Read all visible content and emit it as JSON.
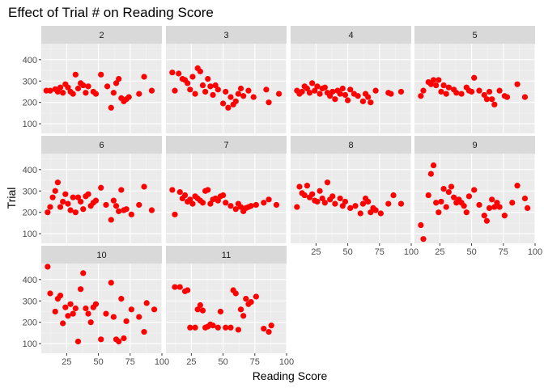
{
  "chart_data": {
    "type": "scatter",
    "title": "Effect of Trial # on Reading Score",
    "xlabel": "Reading Score",
    "ylabel": "Trial",
    "xlim": [
      5,
      100
    ],
    "ylim": [
      55,
      475
    ],
    "xticks": [
      25,
      50,
      75,
      100
    ],
    "yticks": [
      100,
      200,
      300,
      400
    ],
    "grid": true,
    "point_color": "#ff0000",
    "panel_bg": "#ebebeb",
    "strip_bg": "#d9d9d9",
    "facets": [
      {
        "label": "2",
        "points": [
          [
            9,
            255
          ],
          [
            12,
            255
          ],
          [
            16,
            262
          ],
          [
            18,
            250
          ],
          [
            20,
            270
          ],
          [
            22,
            245
          ],
          [
            24,
            285
          ],
          [
            26,
            270
          ],
          [
            28,
            250
          ],
          [
            30,
            240
          ],
          [
            32,
            330
          ],
          [
            34,
            265
          ],
          [
            36,
            290
          ],
          [
            38,
            280
          ],
          [
            40,
            245
          ],
          [
            42,
            275
          ],
          [
            46,
            250
          ],
          [
            48,
            240
          ],
          [
            52,
            330
          ],
          [
            57,
            275
          ],
          [
            60,
            175
          ],
          [
            62,
            245
          ],
          [
            64,
            290
          ],
          [
            66,
            310
          ],
          [
            68,
            220
          ],
          [
            70,
            205
          ],
          [
            72,
            215
          ],
          [
            74,
            225
          ],
          [
            82,
            240
          ],
          [
            86,
            320
          ],
          [
            92,
            255
          ]
        ]
      },
      {
        "label": "3",
        "points": [
          [
            10,
            340
          ],
          [
            12,
            255
          ],
          [
            15,
            335
          ],
          [
            18,
            310
          ],
          [
            20,
            305
          ],
          [
            22,
            290
          ],
          [
            24,
            260
          ],
          [
            26,
            320
          ],
          [
            28,
            240
          ],
          [
            30,
            360
          ],
          [
            32,
            345
          ],
          [
            34,
            280
          ],
          [
            36,
            250
          ],
          [
            38,
            310
          ],
          [
            40,
            275
          ],
          [
            42,
            235
          ],
          [
            44,
            280
          ],
          [
            46,
            260
          ],
          [
            50,
            195
          ],
          [
            52,
            250
          ],
          [
            54,
            175
          ],
          [
            56,
            225
          ],
          [
            58,
            190
          ],
          [
            60,
            205
          ],
          [
            62,
            240
          ],
          [
            64,
            265
          ],
          [
            66,
            230
          ],
          [
            70,
            255
          ],
          [
            74,
            225
          ],
          [
            84,
            260
          ],
          [
            86,
            200
          ],
          [
            94,
            240
          ]
        ]
      },
      {
        "label": "4",
        "points": [
          [
            10,
            255
          ],
          [
            12,
            240
          ],
          [
            14,
            250
          ],
          [
            16,
            275
          ],
          [
            18,
            265
          ],
          [
            20,
            245
          ],
          [
            22,
            290
          ],
          [
            24,
            255
          ],
          [
            26,
            275
          ],
          [
            28,
            240
          ],
          [
            30,
            265
          ],
          [
            32,
            270
          ],
          [
            34,
            245
          ],
          [
            36,
            230
          ],
          [
            38,
            250
          ],
          [
            40,
            215
          ],
          [
            42,
            255
          ],
          [
            44,
            240
          ],
          [
            46,
            265
          ],
          [
            48,
            235
          ],
          [
            50,
            210
          ],
          [
            52,
            260
          ],
          [
            55,
            240
          ],
          [
            58,
            230
          ],
          [
            62,
            205
          ],
          [
            64,
            240
          ],
          [
            66,
            225
          ],
          [
            68,
            200
          ],
          [
            72,
            255
          ],
          [
            82,
            245
          ],
          [
            84,
            240
          ],
          [
            92,
            250
          ]
        ]
      },
      {
        "label": "5",
        "points": [
          [
            10,
            230
          ],
          [
            12,
            255
          ],
          [
            16,
            295
          ],
          [
            18,
            285
          ],
          [
            20,
            305
          ],
          [
            22,
            280
          ],
          [
            24,
            305
          ],
          [
            26,
            250
          ],
          [
            28,
            280
          ],
          [
            30,
            240
          ],
          [
            32,
            270
          ],
          [
            36,
            260
          ],
          [
            38,
            245
          ],
          [
            42,
            240
          ],
          [
            46,
            270
          ],
          [
            48,
            255
          ],
          [
            50,
            250
          ],
          [
            52,
            315
          ],
          [
            56,
            255
          ],
          [
            60,
            235
          ],
          [
            62,
            215
          ],
          [
            64,
            250
          ],
          [
            66,
            215
          ],
          [
            68,
            190
          ],
          [
            72,
            255
          ],
          [
            76,
            230
          ],
          [
            78,
            225
          ],
          [
            86,
            285
          ],
          [
            92,
            225
          ]
        ]
      },
      {
        "label": "6",
        "points": [
          [
            10,
            200
          ],
          [
            12,
            225
          ],
          [
            14,
            270
          ],
          [
            16,
            300
          ],
          [
            18,
            340
          ],
          [
            20,
            225
          ],
          [
            22,
            250
          ],
          [
            24,
            285
          ],
          [
            26,
            240
          ],
          [
            28,
            210
          ],
          [
            30,
            270
          ],
          [
            32,
            200
          ],
          [
            34,
            270
          ],
          [
            36,
            250
          ],
          [
            38,
            215
          ],
          [
            40,
            275
          ],
          [
            42,
            285
          ],
          [
            44,
            230
          ],
          [
            46,
            245
          ],
          [
            48,
            255
          ],
          [
            52,
            315
          ],
          [
            56,
            235
          ],
          [
            60,
            165
          ],
          [
            62,
            255
          ],
          [
            64,
            230
          ],
          [
            66,
            205
          ],
          [
            68,
            305
          ],
          [
            70,
            210
          ],
          [
            72,
            215
          ],
          [
            76,
            190
          ],
          [
            82,
            235
          ],
          [
            86,
            320
          ],
          [
            92,
            210
          ]
        ]
      },
      {
        "label": "7",
        "points": [
          [
            10,
            305
          ],
          [
            12,
            190
          ],
          [
            16,
            295
          ],
          [
            18,
            265
          ],
          [
            20,
            280
          ],
          [
            22,
            250
          ],
          [
            24,
            260
          ],
          [
            26,
            240
          ],
          [
            28,
            275
          ],
          [
            30,
            265
          ],
          [
            32,
            255
          ],
          [
            34,
            245
          ],
          [
            36,
            300
          ],
          [
            38,
            305
          ],
          [
            40,
            240
          ],
          [
            42,
            260
          ],
          [
            44,
            265
          ],
          [
            46,
            255
          ],
          [
            48,
            275
          ],
          [
            50,
            280
          ],
          [
            52,
            245
          ],
          [
            56,
            230
          ],
          [
            60,
            215
          ],
          [
            62,
            240
          ],
          [
            64,
            225
          ],
          [
            66,
            205
          ],
          [
            68,
            220
          ],
          [
            70,
            225
          ],
          [
            72,
            230
          ],
          [
            76,
            235
          ],
          [
            82,
            245
          ],
          [
            86,
            260
          ],
          [
            92,
            235
          ]
        ]
      },
      {
        "label": "8",
        "points": [
          [
            10,
            225
          ],
          [
            12,
            320
          ],
          [
            14,
            290
          ],
          [
            16,
            280
          ],
          [
            18,
            325
          ],
          [
            20,
            270
          ],
          [
            22,
            285
          ],
          [
            24,
            255
          ],
          [
            26,
            250
          ],
          [
            28,
            300
          ],
          [
            30,
            265
          ],
          [
            32,
            245
          ],
          [
            34,
            340
          ],
          [
            36,
            260
          ],
          [
            38,
            275
          ],
          [
            40,
            240
          ],
          [
            44,
            265
          ],
          [
            46,
            230
          ],
          [
            48,
            250
          ],
          [
            52,
            220
          ],
          [
            56,
            230
          ],
          [
            60,
            195
          ],
          [
            62,
            240
          ],
          [
            64,
            265
          ],
          [
            66,
            250
          ],
          [
            68,
            200
          ],
          [
            70,
            220
          ],
          [
            72,
            210
          ],
          [
            76,
            195
          ],
          [
            82,
            240
          ],
          [
            86,
            280
          ],
          [
            92,
            240
          ]
        ]
      },
      {
        "label": "9",
        "points": [
          [
            10,
            140
          ],
          [
            12,
            75
          ],
          [
            16,
            280
          ],
          [
            18,
            380
          ],
          [
            20,
            420
          ],
          [
            22,
            245
          ],
          [
            24,
            200
          ],
          [
            26,
            250
          ],
          [
            28,
            310
          ],
          [
            30,
            225
          ],
          [
            32,
            295
          ],
          [
            34,
            320
          ],
          [
            36,
            270
          ],
          [
            38,
            245
          ],
          [
            40,
            260
          ],
          [
            42,
            245
          ],
          [
            44,
            230
          ],
          [
            46,
            200
          ],
          [
            48,
            275
          ],
          [
            52,
            305
          ],
          [
            56,
            235
          ],
          [
            60,
            185
          ],
          [
            62,
            160
          ],
          [
            64,
            220
          ],
          [
            66,
            260
          ],
          [
            68,
            225
          ],
          [
            70,
            245
          ],
          [
            72,
            225
          ],
          [
            76,
            185
          ],
          [
            82,
            245
          ],
          [
            86,
            325
          ],
          [
            92,
            265
          ],
          [
            94,
            220
          ]
        ]
      },
      {
        "label": "10",
        "points": [
          [
            10,
            460
          ],
          [
            12,
            335
          ],
          [
            16,
            250
          ],
          [
            18,
            310
          ],
          [
            20,
            325
          ],
          [
            22,
            195
          ],
          [
            24,
            270
          ],
          [
            26,
            230
          ],
          [
            28,
            285
          ],
          [
            30,
            240
          ],
          [
            32,
            265
          ],
          [
            34,
            110
          ],
          [
            36,
            355
          ],
          [
            38,
            430
          ],
          [
            40,
            265
          ],
          [
            42,
            240
          ],
          [
            44,
            200
          ],
          [
            46,
            270
          ],
          [
            48,
            285
          ],
          [
            52,
            120
          ],
          [
            56,
            240
          ],
          [
            60,
            385
          ],
          [
            62,
            225
          ],
          [
            64,
            120
          ],
          [
            66,
            110
          ],
          [
            68,
            310
          ],
          [
            70,
            125
          ],
          [
            72,
            205
          ],
          [
            76,
            260
          ],
          [
            82,
            225
          ],
          [
            86,
            155
          ],
          [
            88,
            290
          ],
          [
            94,
            260
          ]
        ]
      },
      {
        "label": "11",
        "points": [
          [
            12,
            365
          ],
          [
            16,
            365
          ],
          [
            20,
            345
          ],
          [
            22,
            350
          ],
          [
            24,
            175
          ],
          [
            28,
            175
          ],
          [
            30,
            260
          ],
          [
            32,
            280
          ],
          [
            34,
            255
          ],
          [
            36,
            175
          ],
          [
            38,
            180
          ],
          [
            40,
            190
          ],
          [
            42,
            185
          ],
          [
            46,
            175
          ],
          [
            48,
            250
          ],
          [
            52,
            175
          ],
          [
            56,
            175
          ],
          [
            58,
            350
          ],
          [
            60,
            335
          ],
          [
            62,
            165
          ],
          [
            64,
            260
          ],
          [
            66,
            230
          ],
          [
            68,
            310
          ],
          [
            70,
            285
          ],
          [
            72,
            295
          ],
          [
            76,
            320
          ],
          [
            82,
            170
          ],
          [
            86,
            155
          ],
          [
            88,
            185
          ]
        ]
      }
    ]
  }
}
